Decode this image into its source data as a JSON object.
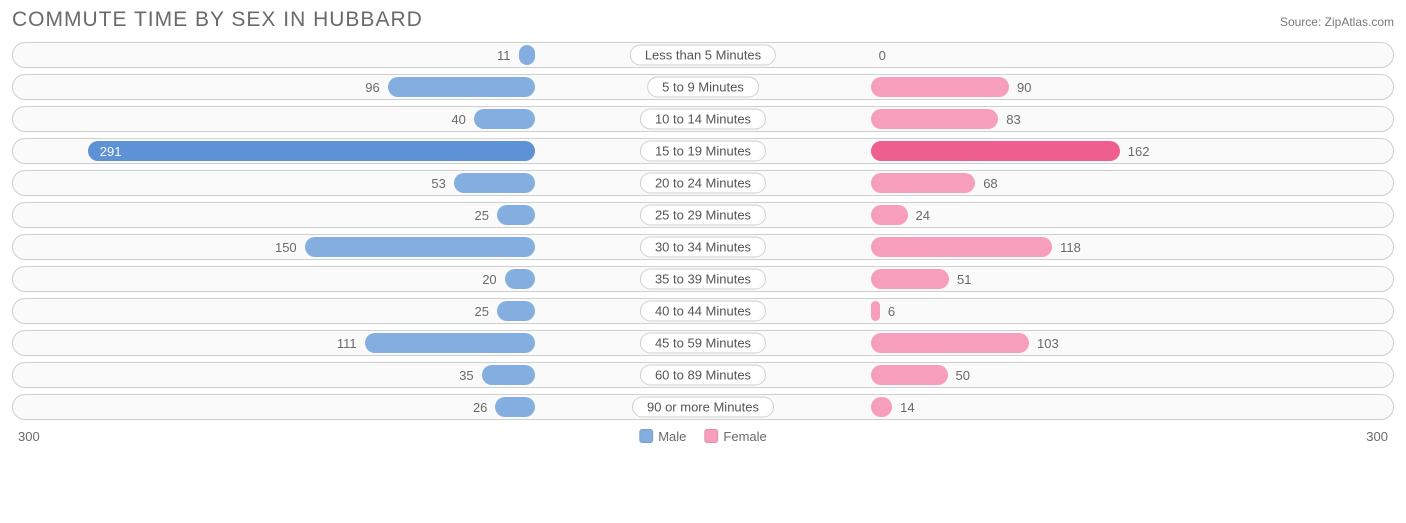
{
  "title": "COMMUTE TIME BY SEX IN HUBBARD",
  "source": "Source: ZipAtlas.com",
  "axis_max": 300,
  "axis_label_left": "300",
  "axis_label_right": "300",
  "colors": {
    "male_base": "#85aee0",
    "male_highlight": "#5d92d6",
    "female_base": "#f69ebb",
    "female_highlight": "#ee5e8f",
    "track_border": "#cfcfcf",
    "track_bg": "#fafafa",
    "text": "#6a6a6a",
    "label_bg": "#ffffff"
  },
  "legend": [
    {
      "label": "Male",
      "color": "#85aee0"
    },
    {
      "label": "Female",
      "color": "#f69ebb"
    }
  ],
  "rows": [
    {
      "category": "Less than 5 Minutes",
      "male": 11,
      "female": 0,
      "highlight": false
    },
    {
      "category": "5 to 9 Minutes",
      "male": 96,
      "female": 90,
      "highlight": false
    },
    {
      "category": "10 to 14 Minutes",
      "male": 40,
      "female": 83,
      "highlight": false
    },
    {
      "category": "15 to 19 Minutes",
      "male": 291,
      "female": 162,
      "highlight": true
    },
    {
      "category": "20 to 24 Minutes",
      "male": 53,
      "female": 68,
      "highlight": false
    },
    {
      "category": "25 to 29 Minutes",
      "male": 25,
      "female": 24,
      "highlight": false
    },
    {
      "category": "30 to 34 Minutes",
      "male": 150,
      "female": 118,
      "highlight": false
    },
    {
      "category": "35 to 39 Minutes",
      "male": 20,
      "female": 51,
      "highlight": false
    },
    {
      "category": "40 to 44 Minutes",
      "male": 25,
      "female": 6,
      "highlight": false
    },
    {
      "category": "45 to 59 Minutes",
      "male": 111,
      "female": 103,
      "highlight": false
    },
    {
      "category": "60 to 89 Minutes",
      "male": 35,
      "female": 50,
      "highlight": false
    },
    {
      "category": "90 or more Minutes",
      "male": 26,
      "female": 14,
      "highlight": false
    }
  ]
}
